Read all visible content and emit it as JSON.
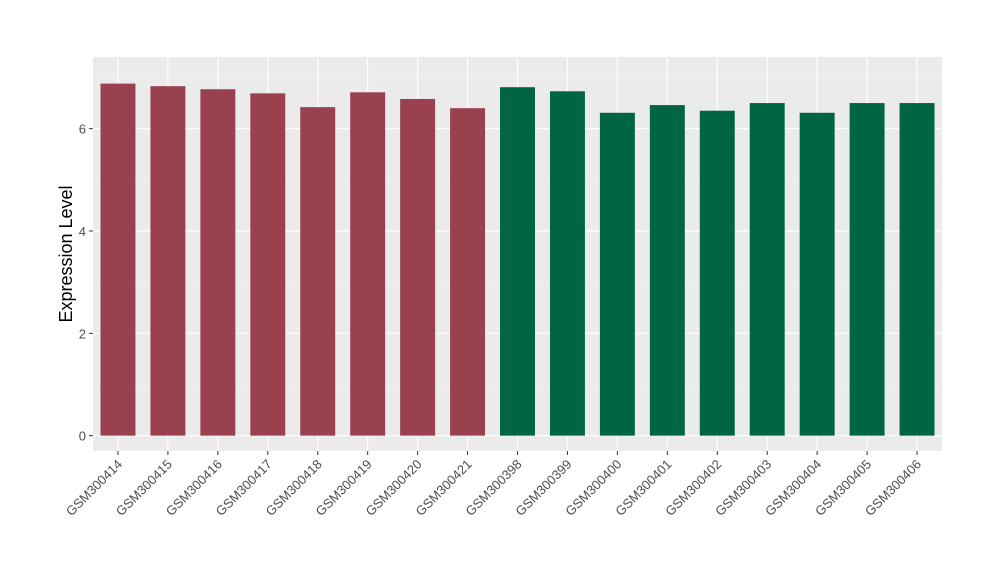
{
  "chart_data": {
    "type": "bar",
    "title": "",
    "xlabel": "",
    "ylabel": "Expression Level",
    "ylim": [
      -0.3,
      7.4
    ],
    "yticks": [
      0,
      2,
      4,
      6
    ],
    "grid": true,
    "categories": [
      "GSM300414",
      "GSM300415",
      "GSM300416",
      "GSM300417",
      "GSM300418",
      "GSM300419",
      "GSM300420",
      "GSM300421",
      "GSM300398",
      "GSM300399",
      "GSM300400",
      "GSM300401",
      "GSM300402",
      "GSM300403",
      "GSM300404",
      "GSM300405",
      "GSM300406"
    ],
    "values": [
      6.88,
      6.83,
      6.77,
      6.69,
      6.42,
      6.71,
      6.58,
      6.4,
      6.81,
      6.73,
      6.31,
      6.46,
      6.35,
      6.5,
      6.31,
      6.5,
      6.5
    ],
    "group_colors": [
      "#9A4150",
      "#9A4150",
      "#9A4150",
      "#9A4150",
      "#9A4150",
      "#9A4150",
      "#9A4150",
      "#9A4150",
      "#006543",
      "#006543",
      "#006543",
      "#006543",
      "#006543",
      "#006543",
      "#006543",
      "#006543",
      "#006543"
    ],
    "panel_background": "#EBEBEB"
  }
}
